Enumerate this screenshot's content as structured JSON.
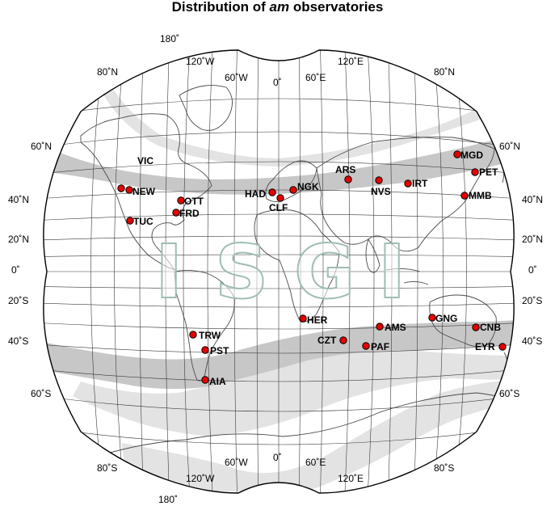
{
  "title": {
    "prefix": "Distribution of ",
    "emph": "am",
    "suffix": " observatories"
  },
  "watermark": [
    "I",
    "S",
    "G",
    "I"
  ],
  "colors": {
    "marker": "#e60000",
    "band_dark": "#c6c6c6",
    "band_light": "#e2e2e2",
    "graticule": "#3a3a3a",
    "coast": "#4a4a4a",
    "watermark": "#9fbdb4"
  },
  "lon_labels": {
    "top": [
      "180˚",
      "120˚W",
      "60˚W",
      "0˚",
      "60˚E",
      "120˚E"
    ],
    "bottom": [
      "120˚W",
      "60˚W",
      "0˚",
      "60˚E",
      "120˚E",
      "180˚"
    ]
  },
  "lat_labels": {
    "left": [
      "80˚N",
      "60˚N",
      "40˚N",
      "20˚N",
      "0˚",
      "20˚S",
      "40˚S",
      "60˚S",
      "80˚S"
    ],
    "right": [
      "80˚N",
      "60˚N",
      "40˚N",
      "20˚N",
      "0˚",
      "20˚S",
      "40˚S",
      "60˚S",
      "80˚S"
    ]
  },
  "observatories": [
    {
      "code": "VIC"
    },
    {
      "code": "NEW"
    },
    {
      "code": "OTT"
    },
    {
      "code": "FRD"
    },
    {
      "code": "TUC"
    },
    {
      "code": "HAD"
    },
    {
      "code": "CLF"
    },
    {
      "code": "NGK"
    },
    {
      "code": "ARS"
    },
    {
      "code": "NVS"
    },
    {
      "code": "IRT"
    },
    {
      "code": "MGD"
    },
    {
      "code": "PET"
    },
    {
      "code": "MMB"
    },
    {
      "code": "HER"
    },
    {
      "code": "TRW"
    },
    {
      "code": "PST"
    },
    {
      "code": "AIA"
    },
    {
      "code": "CZT"
    },
    {
      "code": "AMS"
    },
    {
      "code": "PAF"
    },
    {
      "code": "GNG"
    },
    {
      "code": "CNB"
    },
    {
      "code": "EYR"
    }
  ]
}
